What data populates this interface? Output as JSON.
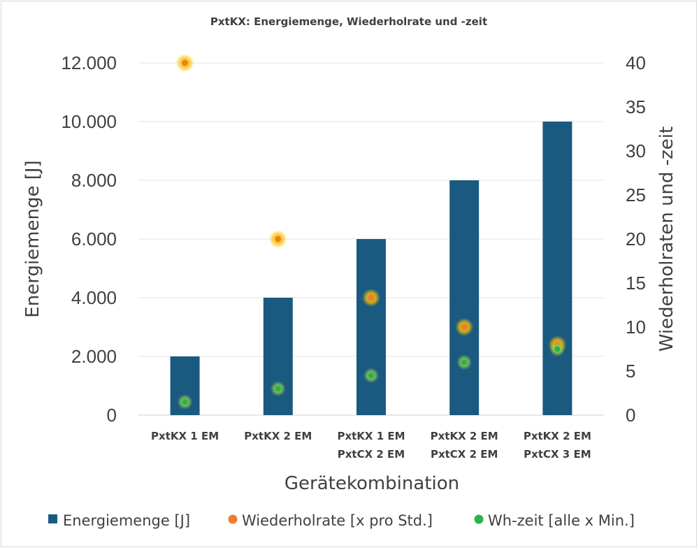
{
  "chart_data": {
    "type": "bar",
    "title": "PxtKX: Energiemenge, Wiederholrate und -zeit",
    "xlabel": "Gerätekombination",
    "ylabel": "Energiemenge [J]",
    "y2label": "Wiederholraten und -zeit",
    "categories": [
      [
        "PxtKX 1 EM"
      ],
      [
        "PxtKX 2 EM"
      ],
      [
        "PxtKX 1 EM",
        "PxtCX 2 EM"
      ],
      [
        "PxtKX 2 EM",
        "PxtCX 2 EM"
      ],
      [
        "PxtKX 2 EM",
        "PxtCX 3 EM"
      ]
    ],
    "ylim": [
      0,
      12000
    ],
    "y_ticks": [
      "0",
      "2.000",
      "4.000",
      "6.000",
      "8.000",
      "10.000",
      "12.000"
    ],
    "y2lim": [
      0,
      40
    ],
    "y2_ticks": [
      "0",
      "5",
      "10",
      "15",
      "20",
      "25",
      "30",
      "35",
      "40"
    ],
    "grid": true,
    "legend_position": "bottom",
    "series": [
      {
        "name": "Energiemenge [J]",
        "type": "bar",
        "axis": "left",
        "color": "#1a5a80",
        "values": [
          2000,
          4000,
          6000,
          8000,
          10000
        ]
      },
      {
        "name": "Wiederholrate [x pro Std.]",
        "type": "scatter",
        "axis": "right",
        "color": "#ed7d31",
        "glow": "#ffc000",
        "values": [
          40,
          20,
          13.33,
          10,
          8
        ]
      },
      {
        "name": "Wh-zeit [alle x Min.]",
        "type": "scatter",
        "axis": "right",
        "color": "#28b34b",
        "glow": "#92d050",
        "values": [
          1.5,
          3,
          4.5,
          6,
          7.5
        ]
      }
    ]
  }
}
